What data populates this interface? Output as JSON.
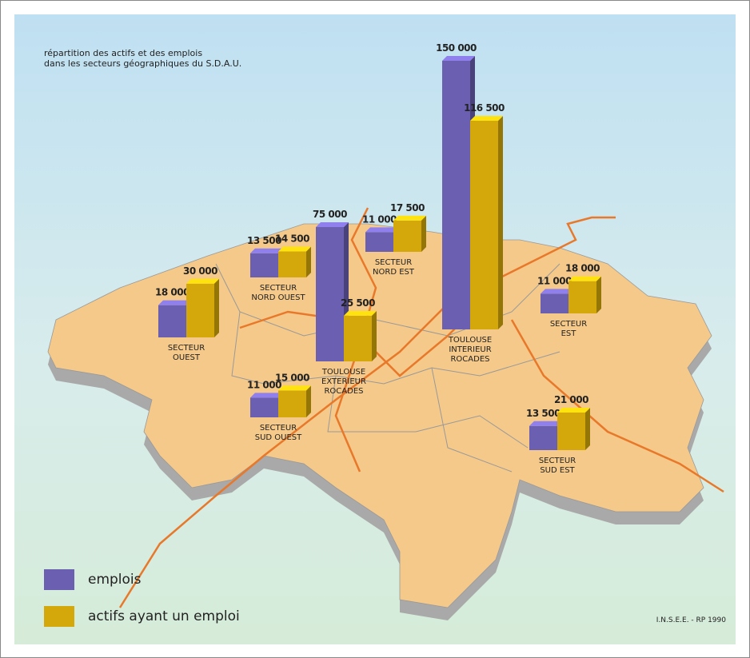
{
  "chart_data": {
    "type": "bar",
    "title": "répartition des actifs et des emplois\ndans les secteurs géographiques du S.D.A.U.",
    "categories": [
      "SECTEUR\nOUEST",
      "SECTEUR\nNORD OUEST",
      "TOULOUSE\nEXTERIEUR\nROCADES",
      "SECTEUR\nNORD EST",
      "TOULOUSE\nINTERIEUR\nROCADES",
      "SECTEUR\nEST",
      "SECTEUR\nSUD OUEST",
      "SECTEUR\nSUD EST"
    ],
    "series": [
      {
        "name": "emplois",
        "color": "#6a5fb0",
        "values": [
          18000,
          13500,
          75000,
          11000,
          150000,
          11000,
          11000,
          13500
        ],
        "value_labels": [
          "18 000",
          "13 500",
          "75 000",
          "11 000",
          "150 000",
          "11 000",
          "11 000",
          "13 500"
        ]
      },
      {
        "name": "actifs ayant un emploi",
        "color": "#d4a80a",
        "values": [
          30000,
          14500,
          25500,
          17500,
          116500,
          18000,
          15000,
          21000
        ],
        "value_labels": [
          "30 000",
          "14 500",
          "25 500",
          "17 500",
          "116 500",
          "18 000",
          "15 000",
          "21 000"
        ]
      }
    ],
    "source": "I.N.S.E.E. - RP 1990"
  }
}
